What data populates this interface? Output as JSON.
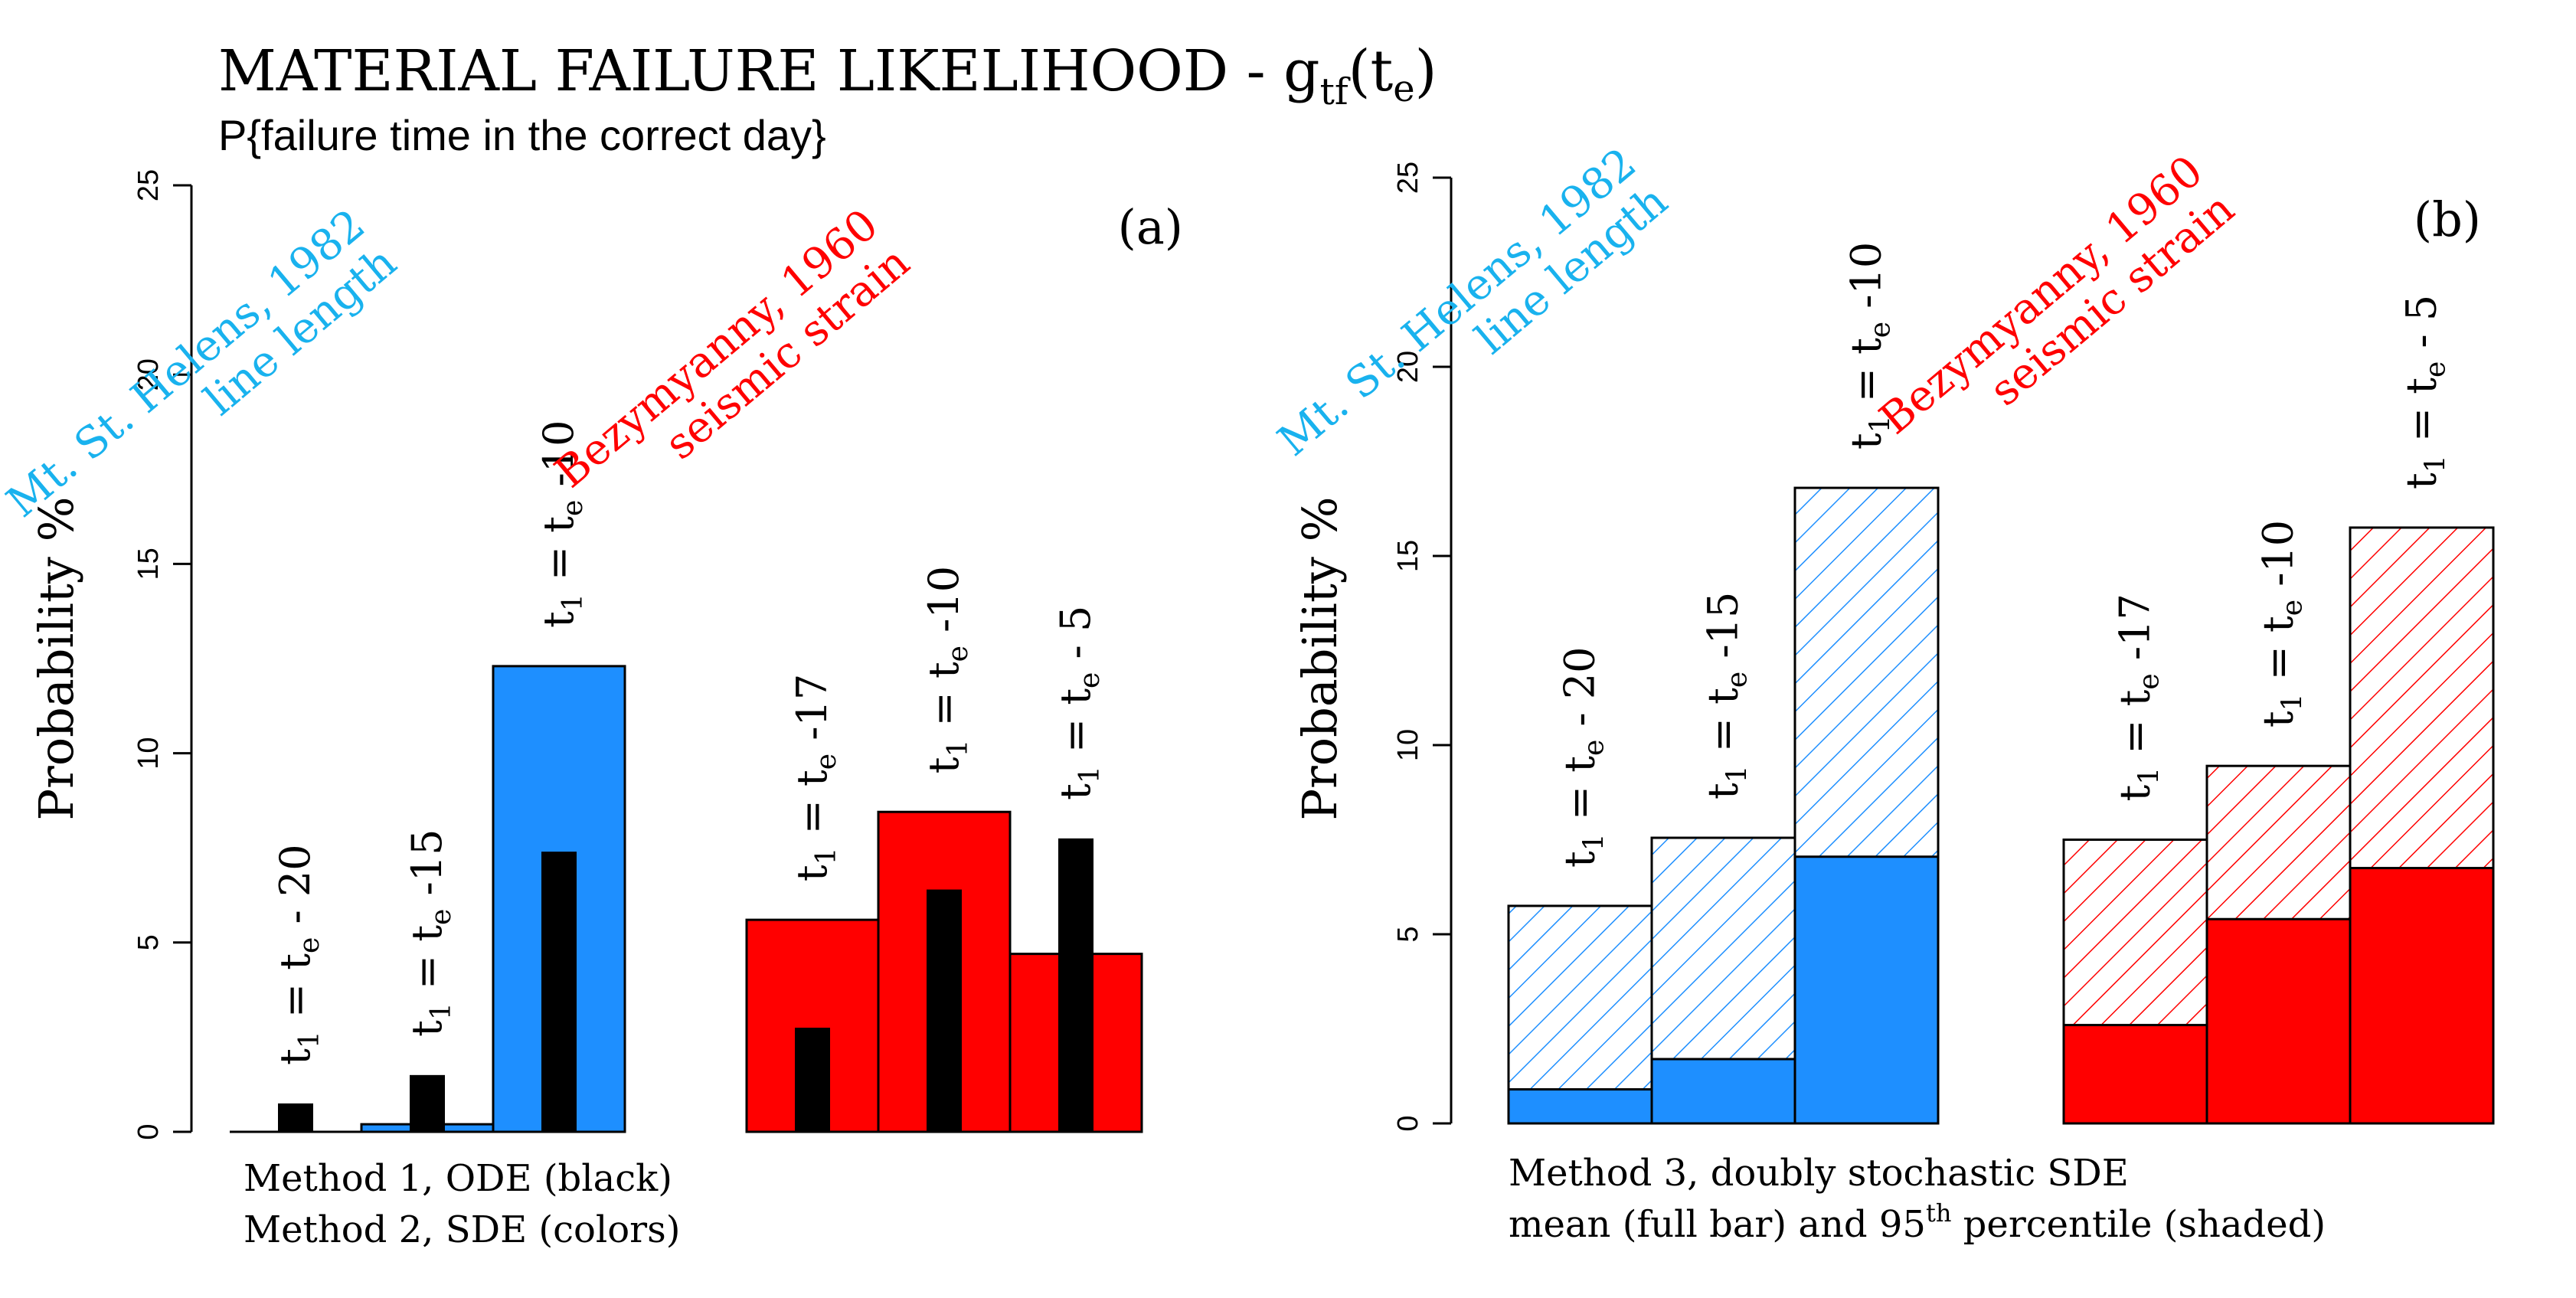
{
  "title": {
    "main": "MATERIAL FAILURE LIKELIHOOD - g",
    "main_sub": "tf",
    "main_arg": "(t",
    "main_arg_sub": "e",
    "main_close": ")",
    "subtitle": "P{failure time in the correct day}"
  },
  "colors": {
    "blue": "#1e8fff",
    "red": "#ff0000",
    "black": "#000000",
    "label_blue": "#19b2ee",
    "label_red": "#ff0000"
  },
  "chart_data": [
    {
      "type": "bar",
      "panel": "(a)",
      "ylabel": "Probability %",
      "ylim": [
        0,
        25
      ],
      "yticks": [
        "0",
        "5",
        "10",
        "15",
        "20",
        "25"
      ],
      "groups": [
        {
          "name": "Mt. St. Helens",
          "label_lines": [
            "Mt. St. Helens, 1982",
            "line length"
          ],
          "color": "#1e8fff",
          "bars": [
            {
              "label": [
                "t",
                "1",
                " = t",
                "e",
                " - 20"
              ],
              "sde": 0.0,
              "ode": 0.75
            },
            {
              "label": [
                "t",
                "1",
                " = t",
                "e",
                " -15"
              ],
              "sde": 0.2,
              "ode": 1.5
            },
            {
              "label": [
                "t",
                "1",
                " = t",
                "e",
                " -10"
              ],
              "sde": 12.3,
              "ode": 7.4
            }
          ]
        },
        {
          "name": "Bezymyanny",
          "label_lines": [
            "Bezymyanny, 1960",
            "seismic strain"
          ],
          "color": "#ff0000",
          "bars": [
            {
              "label": [
                "t",
                "1",
                " = t",
                "e",
                " -17"
              ],
              "sde": 5.6,
              "ode": 2.75
            },
            {
              "label": [
                "t",
                "1",
                " = t",
                "e",
                " -10"
              ],
              "sde": 8.45,
              "ode": 6.4
            },
            {
              "label": [
                "t",
                "1",
                " = t",
                "e",
                " - 5"
              ],
              "sde": 4.7,
              "ode": 7.75
            }
          ]
        }
      ],
      "caption": [
        "Method 1, ODE (black)",
        "Method 2, SDE (colors)"
      ]
    },
    {
      "type": "bar",
      "panel": "(b)",
      "ylabel": "Probability %",
      "ylim": [
        0,
        25
      ],
      "yticks": [
        "0",
        "5",
        "10",
        "15",
        "20",
        "25"
      ],
      "groups": [
        {
          "name": "Mt. St. Helens",
          "label_lines": [
            "Mt. St. Helens, 1982",
            "line length"
          ],
          "color": "#1e8fff",
          "bars": [
            {
              "label": [
                "t",
                "1",
                " = t",
                "e",
                " - 20"
              ],
              "mean": 0.9,
              "p95": 5.75
            },
            {
              "label": [
                "t",
                "1",
                " = t",
                "e",
                " -15"
              ],
              "mean": 1.7,
              "p95": 7.55
            },
            {
              "label": [
                "t",
                "1",
                " = t",
                "e",
                " -10"
              ],
              "mean": 7.05,
              "p95": 16.8
            }
          ]
        },
        {
          "name": "Bezymyanny",
          "label_lines": [
            "Bezymyanny, 1960",
            "seismic strain"
          ],
          "color": "#ff0000",
          "bars": [
            {
              "label": [
                "t",
                "1",
                " = t",
                "e",
                " -17"
              ],
              "mean": 2.6,
              "p95": 7.5
            },
            {
              "label": [
                "t",
                "1",
                " = t",
                "e",
                " -10"
              ],
              "mean": 5.4,
              "p95": 9.45
            },
            {
              "label": [
                "t",
                "1",
                " = t",
                "e",
                " - 5"
              ],
              "mean": 6.75,
              "p95": 15.75
            }
          ]
        }
      ],
      "caption_line1": "Method 3, doubly stochastic SDE",
      "caption_line2": [
        "mean (full bar) and 95",
        "th",
        " percentile (shaded)"
      ]
    }
  ]
}
